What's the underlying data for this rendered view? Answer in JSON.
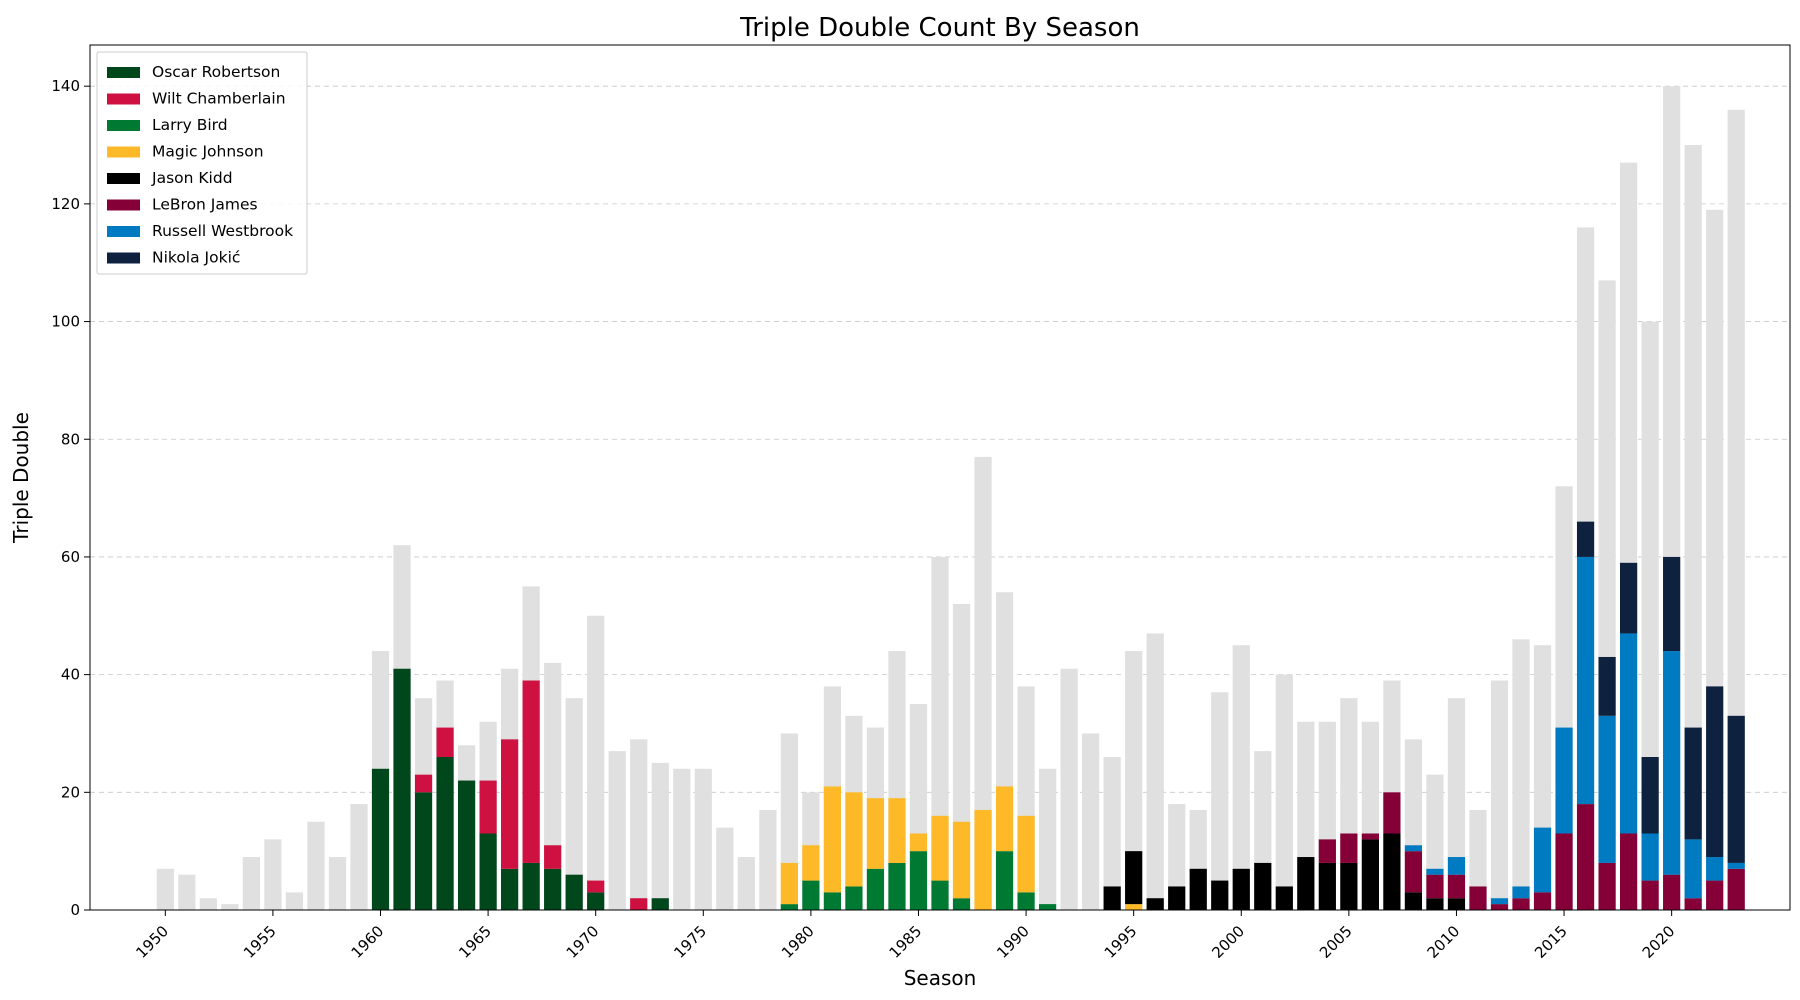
{
  "chart_data": {
    "type": "bar",
    "title": "Triple Double Count By Season",
    "xlabel": "Season",
    "ylabel": "Triple Double",
    "xlim": [
      1946.5,
      2025.5
    ],
    "ylim": [
      0,
      147
    ],
    "xticks": [
      1950,
      1955,
      1960,
      1965,
      1970,
      1975,
      1980,
      1985,
      1990,
      1995,
      2000,
      2005,
      2010,
      2015,
      2020
    ],
    "yticks": [
      0,
      20,
      40,
      60,
      80,
      100,
      120,
      140
    ],
    "grid": "horizontal dashed",
    "legend_position": "top-left",
    "total_color": "#e0e0e0",
    "total": {
      "x": [
        1950,
        1951,
        1952,
        1953,
        1954,
        1955,
        1956,
        1957,
        1958,
        1959,
        1960,
        1961,
        1962,
        1963,
        1964,
        1965,
        1966,
        1967,
        1968,
        1969,
        1970,
        1971,
        1972,
        1973,
        1974,
        1975,
        1976,
        1977,
        1978,
        1979,
        1980,
        1981,
        1982,
        1983,
        1984,
        1985,
        1986,
        1987,
        1988,
        1989,
        1990,
        1991,
        1992,
        1993,
        1994,
        1995,
        1996,
        1997,
        1998,
        1999,
        2000,
        2001,
        2002,
        2003,
        2004,
        2005,
        2006,
        2007,
        2008,
        2009,
        2010,
        2011,
        2012,
        2013,
        2014,
        2015,
        2016,
        2017,
        2018,
        2019,
        2020,
        2021,
        2022,
        2023
      ],
      "values": [
        7,
        6,
        2,
        1,
        9,
        12,
        3,
        15,
        9,
        18,
        44,
        62,
        36,
        39,
        28,
        32,
        41,
        55,
        42,
        36,
        50,
        27,
        29,
        25,
        24,
        24,
        14,
        9,
        17,
        30,
        20,
        38,
        33,
        31,
        44,
        35,
        60,
        52,
        77,
        54,
        38,
        24,
        41,
        30,
        26,
        44,
        47,
        18,
        17,
        37,
        45,
        27,
        40,
        32,
        32,
        36,
        32,
        39,
        29,
        23,
        36,
        17,
        39,
        46,
        45,
        72,
        116,
        107,
        127,
        100,
        140,
        130,
        119,
        136
      ]
    },
    "series": [
      {
        "name": "Oscar Robertson",
        "color": "#00471b",
        "x": [
          1960,
          1961,
          1962,
          1963,
          1964,
          1965,
          1966,
          1967,
          1968,
          1969,
          1970,
          1973
        ],
        "values": [
          24,
          41,
          20,
          26,
          22,
          13,
          7,
          8,
          7,
          6,
          3,
          2
        ]
      },
      {
        "name": "Wilt Chamberlain",
        "color": "#ce1141",
        "x": [
          1962,
          1963,
          1965,
          1966,
          1967,
          1968,
          1970,
          1972
        ],
        "values": [
          3,
          5,
          9,
          22,
          31,
          4,
          2,
          2
        ]
      },
      {
        "name": "Larry Bird",
        "color": "#007a33",
        "x": [
          1979,
          1980,
          1981,
          1982,
          1983,
          1984,
          1985,
          1986,
          1987,
          1989,
          1990,
          1991
        ],
        "values": [
          1,
          5,
          3,
          4,
          7,
          8,
          10,
          5,
          2,
          10,
          3,
          1
        ]
      },
      {
        "name": "Magic Johnson",
        "color": "#fdb927",
        "x": [
          1979,
          1980,
          1981,
          1982,
          1983,
          1984,
          1985,
          1986,
          1987,
          1988,
          1989,
          1990,
          1995
        ],
        "values": [
          7,
          6,
          18,
          16,
          12,
          11,
          3,
          11,
          13,
          17,
          11,
          13,
          1
        ]
      },
      {
        "name": "Jason Kidd",
        "color": "#000000",
        "x": [
          1994,
          1995,
          1996,
          1997,
          1998,
          1999,
          2000,
          2001,
          2002,
          2003,
          2004,
          2005,
          2006,
          2007,
          2008,
          2009,
          2010
        ],
        "values": [
          4,
          9,
          2,
          4,
          7,
          5,
          7,
          8,
          4,
          9,
          8,
          8,
          12,
          13,
          3,
          2,
          2
        ]
      },
      {
        "name": "LeBron James",
        "color": "#860038",
        "x": [
          2004,
          2005,
          2006,
          2007,
          2008,
          2009,
          2010,
          2011,
          2012,
          2013,
          2014,
          2015,
          2016,
          2017,
          2018,
          2019,
          2020,
          2021,
          2022,
          2023
        ],
        "values": [
          4,
          5,
          1,
          7,
          7,
          4,
          4,
          4,
          1,
          2,
          3,
          13,
          18,
          8,
          13,
          5,
          6,
          2,
          5,
          7
        ]
      },
      {
        "name": "Russell Westbrook",
        "color": "#007ac1",
        "x": [
          2008,
          2009,
          2010,
          2012,
          2013,
          2014,
          2015,
          2016,
          2017,
          2018,
          2019,
          2020,
          2021,
          2022,
          2023
        ],
        "values": [
          1,
          1,
          3,
          1,
          2,
          11,
          18,
          42,
          25,
          34,
          8,
          38,
          10,
          4,
          1
        ]
      },
      {
        "name": "Nikola Jokić",
        "color": "#0e2240",
        "x": [
          2016,
          2017,
          2018,
          2019,
          2020,
          2021,
          2022,
          2023
        ],
        "values": [
          6,
          10,
          12,
          13,
          16,
          19,
          29,
          25
        ]
      }
    ]
  }
}
